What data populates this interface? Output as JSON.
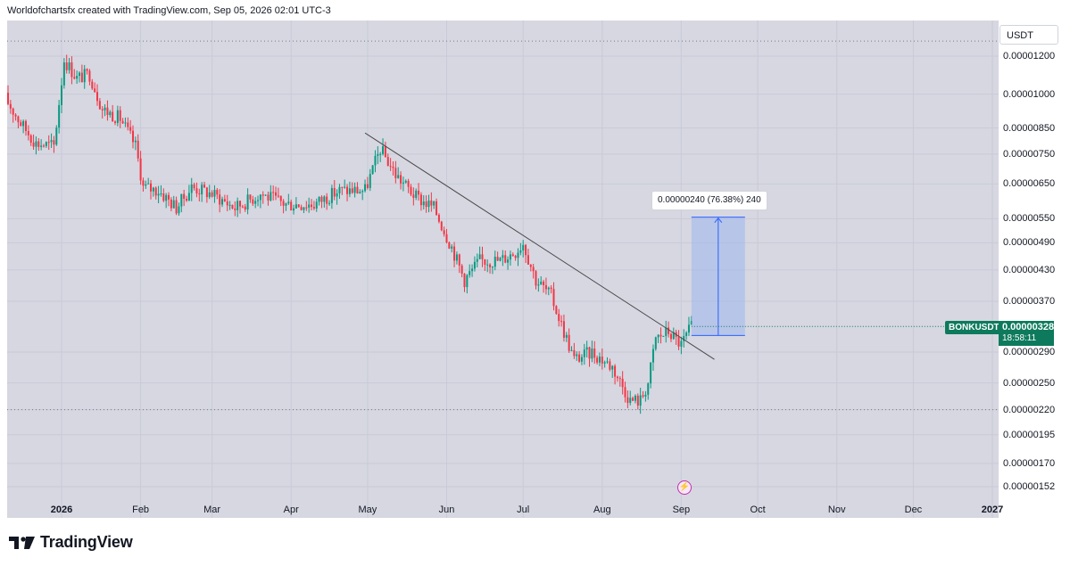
{
  "header": {
    "attribution": "Worldofchartsfx created with TradingView.com, Sep 05, 2026 02:01 UTC-3"
  },
  "footer": {
    "brand": "TradingView"
  },
  "colors": {
    "background": "#d6d7e1",
    "up_candle": "#089981",
    "down_candle": "#f23645",
    "badge": "#0e7a5d",
    "measure_fill": "#9fb6f0",
    "measure_line": "#2962ff",
    "trendline": "#4a4a4a",
    "event": "#c22fb0"
  },
  "chart_data": {
    "type": "candlestick",
    "symbol": "BONKUSDT",
    "unit": "USDT",
    "scale": "log",
    "grid": true,
    "x_axis_labels": [
      "2026",
      "Feb",
      "Mar",
      "Apr",
      "May",
      "Jun",
      "Jul",
      "Aug",
      "Sep",
      "Oct",
      "Nov",
      "Dec",
      "2027"
    ],
    "y_axis_labels": [
      "0.00001200",
      "0.00001000",
      "0.00000850",
      "0.00000750",
      "0.00000650",
      "0.00000550",
      "0.00000490",
      "0.00000430",
      "0.00000370",
      "0.00000290",
      "0.00000250",
      "0.00000220",
      "0.00000195",
      "0.00000170",
      "0.00000152"
    ],
    "ylim": [
      1.45e-06,
      1.45e-05
    ],
    "last_price": "0.00000328",
    "countdown": "18:58:11",
    "period_high": 1.29e-05,
    "period_low": 2.2e-06,
    "price_path": [
      [
        "2025-12-10",
        9.8e-06
      ],
      [
        "2025-12-16",
        8.7e-06
      ],
      [
        "2025-12-22",
        7.9e-06
      ],
      [
        "2025-12-29",
        7.8e-06
      ],
      [
        "2026-01-02",
        1.18e-05
      ],
      [
        "2026-01-07",
        1.08e-05
      ],
      [
        "2026-01-12",
        1.1e-05
      ],
      [
        "2026-01-17",
        9.3e-06
      ],
      [
        "2026-01-24",
        8.9e-06
      ],
      [
        "2026-01-30",
        7.8e-06
      ],
      [
        "2026-02-02",
        6.4e-06
      ],
      [
        "2026-02-08",
        6.3e-06
      ],
      [
        "2026-02-15",
        5.8e-06
      ],
      [
        "2026-02-21",
        6.4e-06
      ],
      [
        "2026-03-01",
        6.2e-06
      ],
      [
        "2026-03-10",
        5.8e-06
      ],
      [
        "2026-03-20",
        6.2e-06
      ],
      [
        "2026-03-30",
        5.9e-06
      ],
      [
        "2026-04-10",
        5.9e-06
      ],
      [
        "2026-04-20",
        6.3e-06
      ],
      [
        "2026-04-30",
        6.3e-06
      ],
      [
        "2026-05-06",
        7.7e-06
      ],
      [
        "2026-05-12",
        6.8e-06
      ],
      [
        "2026-05-20",
        6.1e-06
      ],
      [
        "2026-05-27",
        5.8e-06
      ],
      [
        "2026-06-03",
        4.8e-06
      ],
      [
        "2026-06-08",
        4.1e-06
      ],
      [
        "2026-06-14",
        4.5e-06
      ],
      [
        "2026-06-22",
        4.5e-06
      ],
      [
        "2026-06-28",
        4.7e-06
      ],
      [
        "2026-07-01",
        4.9e-06
      ],
      [
        "2026-07-06",
        4.1e-06
      ],
      [
        "2026-07-12",
        3.8e-06
      ],
      [
        "2026-07-17",
        3.2e-06
      ],
      [
        "2026-07-21",
        2.8e-06
      ],
      [
        "2026-07-28",
        2.9e-06
      ],
      [
        "2026-08-05",
        2.7e-06
      ],
      [
        "2026-08-12",
        2.3e-06
      ],
      [
        "2026-08-16",
        2.3e-06
      ],
      [
        "2026-08-19",
        2.5e-06
      ],
      [
        "2026-08-22",
        3.1e-06
      ],
      [
        "2026-08-27",
        3.2e-06
      ],
      [
        "2026-09-01",
        3e-06
      ],
      [
        "2026-09-05",
        3.28e-06
      ]
    ],
    "trendline": {
      "start": [
        "2026-04-30",
        8.3e-06
      ],
      "end": [
        "2026-09-14",
        2.8e-06
      ]
    },
    "measure": {
      "label": "0.00000240 (76.38%) 240",
      "from": 3.14e-06,
      "to": 5.54e-06,
      "x_start": "2026-09-05",
      "x_end": "2026-09-26"
    },
    "reference_lines": [
      1.29e-05,
      2.2e-06
    ]
  }
}
